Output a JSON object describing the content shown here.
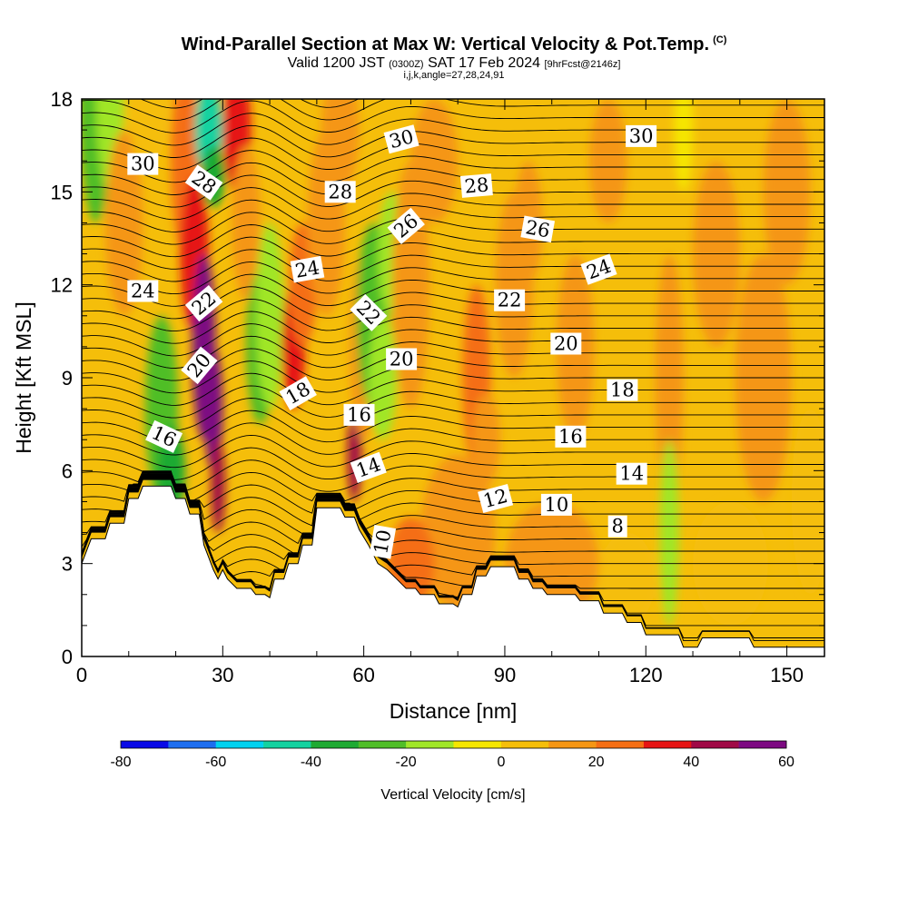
{
  "chart": {
    "title": "Wind-Parallel Section at Max W: Vertical Velocity & Pot.Temp.",
    "copyright": "(C)",
    "subtitle_valid": "Valid 1200 JST",
    "subtitle_zulu": "(0300Z)",
    "subtitle_date": "SAT 17 Feb 2024",
    "subtitle_fcst": "[9hrFcst@2146z]",
    "indices": "i,j,k,angle=27,28,24,91"
  },
  "chart_data": {
    "type": "heatmap",
    "xlabel": "Distance [nm]",
    "ylabel": "Height [Kft MSL]",
    "xlim": [
      0,
      158
    ],
    "ylim": [
      0,
      18
    ],
    "xticks": [
      0,
      30,
      60,
      90,
      120,
      150
    ],
    "yticks": [
      0,
      3,
      6,
      9,
      12,
      15,
      18
    ],
    "grid": false,
    "colorbar": {
      "label": "Vertical Velocity [cm/s]",
      "levels": [
        -80,
        -70,
        -60,
        -50,
        -40,
        -30,
        -20,
        -10,
        0,
        10,
        20,
        30,
        40,
        50,
        60
      ],
      "tick_labels": [
        "-80",
        "-60",
        "-40",
        "-20",
        "0",
        "20",
        "40",
        "60"
      ],
      "colors": [
        "#0a0ae6",
        "#1e6ef0",
        "#00d2f0",
        "#14d2a0",
        "#1eaa32",
        "#50be28",
        "#a0e628",
        "#f5e600",
        "#f5be0a",
        "#f59614",
        "#f56e14",
        "#e61414",
        "#a00a46",
        "#7d0a82"
      ],
      "position": "bottom"
    },
    "terrain_kft": [
      [
        0,
        3.0
      ],
      [
        2,
        3.8
      ],
      [
        5,
        3.8
      ],
      [
        6,
        4.3
      ],
      [
        9,
        4.3
      ],
      [
        10,
        5.1
      ],
      [
        12,
        5.1
      ],
      [
        13,
        5.5
      ],
      [
        19,
        5.5
      ],
      [
        20,
        5.1
      ],
      [
        22,
        5.1
      ],
      [
        23,
        4.6
      ],
      [
        25,
        4.6
      ],
      [
        26,
        3.6
      ],
      [
        27,
        3.2
      ],
      [
        28,
        2.8
      ],
      [
        29,
        2.5
      ],
      [
        30,
        2.8
      ],
      [
        31,
        2.5
      ],
      [
        33,
        2.2
      ],
      [
        36,
        2.2
      ],
      [
        37,
        2.0
      ],
      [
        39,
        2.0
      ],
      [
        40,
        1.9
      ],
      [
        41,
        2.5
      ],
      [
        43,
        2.5
      ],
      [
        44,
        3.0
      ],
      [
        46,
        3.0
      ],
      [
        47,
        3.6
      ],
      [
        49,
        3.6
      ],
      [
        50,
        4.8
      ],
      [
        55,
        4.8
      ],
      [
        56,
        4.5
      ],
      [
        58,
        4.5
      ],
      [
        59,
        4.1
      ],
      [
        61,
        3.6
      ],
      [
        63,
        3.0
      ],
      [
        65,
        2.8
      ],
      [
        67,
        2.5
      ],
      [
        69,
        2.2
      ],
      [
        71,
        2.2
      ],
      [
        72,
        2.0
      ],
      [
        75,
        2.0
      ],
      [
        76,
        1.7
      ],
      [
        79,
        1.7
      ],
      [
        80,
        1.6
      ],
      [
        81,
        2.0
      ],
      [
        83,
        2.0
      ],
      [
        84,
        2.6
      ],
      [
        86,
        2.6
      ],
      [
        87,
        2.9
      ],
      [
        92,
        2.9
      ],
      [
        93,
        2.5
      ],
      [
        95,
        2.5
      ],
      [
        96,
        2.2
      ],
      [
        98,
        2.2
      ],
      [
        99,
        2.0
      ],
      [
        105,
        2.0
      ],
      [
        106,
        1.8
      ],
      [
        110,
        1.8
      ],
      [
        111,
        1.4
      ],
      [
        115,
        1.4
      ],
      [
        116,
        1.1
      ],
      [
        119,
        1.1
      ],
      [
        120,
        0.7
      ],
      [
        127,
        0.7
      ],
      [
        128,
        0.3
      ],
      [
        131,
        0.3
      ],
      [
        132,
        0.6
      ],
      [
        142,
        0.6
      ],
      [
        143,
        0.3
      ],
      [
        158,
        0.3
      ]
    ],
    "cells": [
      [
        0,
        18,
        3,
        0,
        -20
      ],
      [
        3,
        18,
        3.5,
        4,
        -30
      ],
      [
        6,
        18,
        3,
        3,
        -20
      ],
      [
        9,
        14,
        4,
        3,
        10
      ],
      [
        14,
        18,
        4,
        2.5,
        0
      ],
      [
        17,
        8,
        3.5,
        3,
        -30
      ],
      [
        19,
        6,
        3,
        1.5,
        -40
      ],
      [
        22,
        16,
        3,
        3,
        20
      ],
      [
        24,
        13,
        3,
        2.5,
        30
      ],
      [
        26,
        10,
        2.5,
        3,
        50
      ],
      [
        28,
        8,
        2,
        2,
        60
      ],
      [
        29,
        5.5,
        1.5,
        1.5,
        40
      ],
      [
        27,
        17,
        3,
        1.5,
        -50
      ],
      [
        28,
        15.5,
        2.5,
        1,
        -40
      ],
      [
        33,
        17,
        3,
        2,
        30
      ],
      [
        35,
        14,
        3,
        2.5,
        10
      ],
      [
        38,
        10,
        3,
        2.5,
        -30
      ],
      [
        40,
        11,
        3,
        3,
        -20
      ],
      [
        45,
        10,
        2.5,
        2,
        30
      ],
      [
        47,
        12,
        3,
        2,
        20
      ],
      [
        52,
        14,
        4,
        3,
        10
      ],
      [
        55,
        17,
        4,
        2,
        10
      ],
      [
        58,
        6.5,
        1.5,
        1.5,
        40
      ],
      [
        60,
        10,
        3,
        3,
        10
      ],
      [
        62,
        11,
        3.5,
        3,
        -30
      ],
      [
        64,
        9,
        3,
        2,
        -20
      ],
      [
        66,
        13,
        3,
        2,
        -20
      ],
      [
        70,
        12,
        4,
        4,
        10
      ],
      [
        75,
        16,
        5,
        2,
        10
      ],
      [
        84,
        9,
        3,
        3,
        20
      ],
      [
        86,
        7,
        3,
        1.5,
        10
      ],
      [
        92,
        12,
        4,
        3,
        10
      ],
      [
        95,
        14,
        3,
        2,
        10
      ],
      [
        105,
        10,
        4,
        3,
        10
      ],
      [
        112,
        16,
        4,
        2,
        10
      ],
      [
        125,
        9,
        3,
        4,
        10
      ],
      [
        125,
        4,
        2,
        3,
        -20
      ],
      [
        128,
        17,
        2,
        2,
        -10
      ],
      [
        135,
        13,
        5,
        3,
        10
      ],
      [
        145,
        9,
        6,
        4,
        10
      ],
      [
        150,
        15,
        5,
        3,
        10
      ],
      [
        155,
        5,
        4,
        3,
        0
      ],
      [
        100,
        3,
        10,
        2,
        10
      ],
      [
        80,
        4,
        8,
        2.5,
        10
      ],
      [
        70,
        3,
        5,
        1.5,
        20
      ],
      [
        138,
        3,
        8,
        2,
        0
      ],
      [
        116,
        2.5,
        6,
        1.5,
        0
      ]
    ],
    "theta_labels": [
      {
        "text": "30",
        "x": 13,
        "y": 15.9,
        "rot": 0
      },
      {
        "text": "28",
        "x": 26,
        "y": 15.3,
        "rot": 35
      },
      {
        "text": "24",
        "x": 13,
        "y": 11.8,
        "rot": 0
      },
      {
        "text": "22",
        "x": 26,
        "y": 11.4,
        "rot": -40
      },
      {
        "text": "20",
        "x": 25,
        "y": 9.4,
        "rot": -50
      },
      {
        "text": "16",
        "x": 17.5,
        "y": 7.1,
        "rot": 25
      },
      {
        "text": "28",
        "x": 55,
        "y": 15.0,
        "rot": 0
      },
      {
        "text": "24",
        "x": 48,
        "y": 12.5,
        "rot": -10
      },
      {
        "text": "18",
        "x": 46,
        "y": 8.5,
        "rot": -30
      },
      {
        "text": "16",
        "x": 59,
        "y": 7.8,
        "rot": 0
      },
      {
        "text": "14",
        "x": 61,
        "y": 6.1,
        "rot": -20
      },
      {
        "text": "10",
        "x": 64,
        "y": 3.7,
        "rot": -80
      },
      {
        "text": "30",
        "x": 68,
        "y": 16.7,
        "rot": -15
      },
      {
        "text": "26",
        "x": 69,
        "y": 13.9,
        "rot": -40
      },
      {
        "text": "22",
        "x": 61,
        "y": 11.1,
        "rot": 45
      },
      {
        "text": "20",
        "x": 68,
        "y": 9.6,
        "rot": 0
      },
      {
        "text": "28",
        "x": 84,
        "y": 15.2,
        "rot": -5
      },
      {
        "text": "26",
        "x": 97,
        "y": 13.8,
        "rot": 10
      },
      {
        "text": "22",
        "x": 91,
        "y": 11.5,
        "rot": 0
      },
      {
        "text": "20",
        "x": 103,
        "y": 10.1,
        "rot": 0
      },
      {
        "text": "18",
        "x": 115,
        "y": 8.6,
        "rot": 0
      },
      {
        "text": "16",
        "x": 104,
        "y": 7.1,
        "rot": 0
      },
      {
        "text": "14",
        "x": 117,
        "y": 5.9,
        "rot": 0
      },
      {
        "text": "12",
        "x": 88,
        "y": 5.1,
        "rot": -15
      },
      {
        "text": "10",
        "x": 101,
        "y": 4.9,
        "rot": 0
      },
      {
        "text": "8",
        "x": 114,
        "y": 4.2,
        "rot": 0
      },
      {
        "text": "24",
        "x": 110,
        "y": 12.5,
        "rot": -20
      },
      {
        "text": "30",
        "x": 119,
        "y": 16.8,
        "rot": 0
      }
    ]
  }
}
